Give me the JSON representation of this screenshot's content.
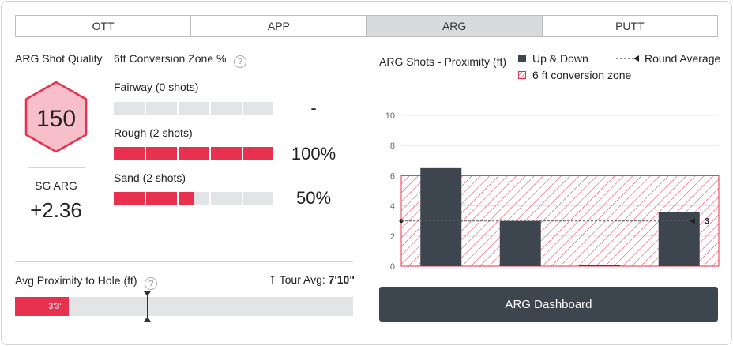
{
  "tabs": [
    {
      "label": "OTT",
      "active": false
    },
    {
      "label": "APP",
      "active": false
    },
    {
      "label": "ARG",
      "active": true
    },
    {
      "label": "PUTT",
      "active": false
    }
  ],
  "quality": {
    "title": "ARG Shot Quality",
    "score": "150",
    "sg_label": "SG ARG",
    "sg_value": "+2.36"
  },
  "conversion": {
    "title": "6ft Conversion Zone %",
    "help": "?",
    "rows": [
      {
        "label": "Fairway (0 shots)",
        "pct_label": "-",
        "fill_pct": 0
      },
      {
        "label": "Rough (2 shots)",
        "pct_label": "100%",
        "fill_pct": 100
      },
      {
        "label": "Sand (2 shots)",
        "pct_label": "50%",
        "fill_pct": 50
      }
    ]
  },
  "proximity": {
    "title": "Avg Proximity to Hole (ft)",
    "help": "?",
    "tour_label": "Tour Avg:",
    "tour_value": "7'10\"",
    "value_label": "3'3\"",
    "value_fraction": 0.16,
    "tour_fraction": 0.39
  },
  "chart_data": {
    "type": "bar",
    "title": "ARG Shots - Proximity (ft)",
    "legend": [
      {
        "name": "Up & Down",
        "kind": "bar",
        "color": "#3d464e"
      },
      {
        "name": "Round Average",
        "kind": "line"
      },
      {
        "name": "6 ft conversion zone",
        "kind": "hatch",
        "color": "#e8304f"
      }
    ],
    "values": [
      6.5,
      3.0,
      0.1,
      3.6
    ],
    "y_ticks": [
      "0",
      "2",
      "4",
      "6",
      "8",
      "10"
    ],
    "ylim": [
      0,
      10
    ],
    "zone_max": 6,
    "average": 3,
    "average_label": "3",
    "grid": true
  },
  "dashboard_button": "ARG Dashboard",
  "colors": {
    "accent": "#e8304f",
    "dark": "#3d464e",
    "hex_fill": "#f7bfc9",
    "hex_stroke": "#e8304f"
  }
}
